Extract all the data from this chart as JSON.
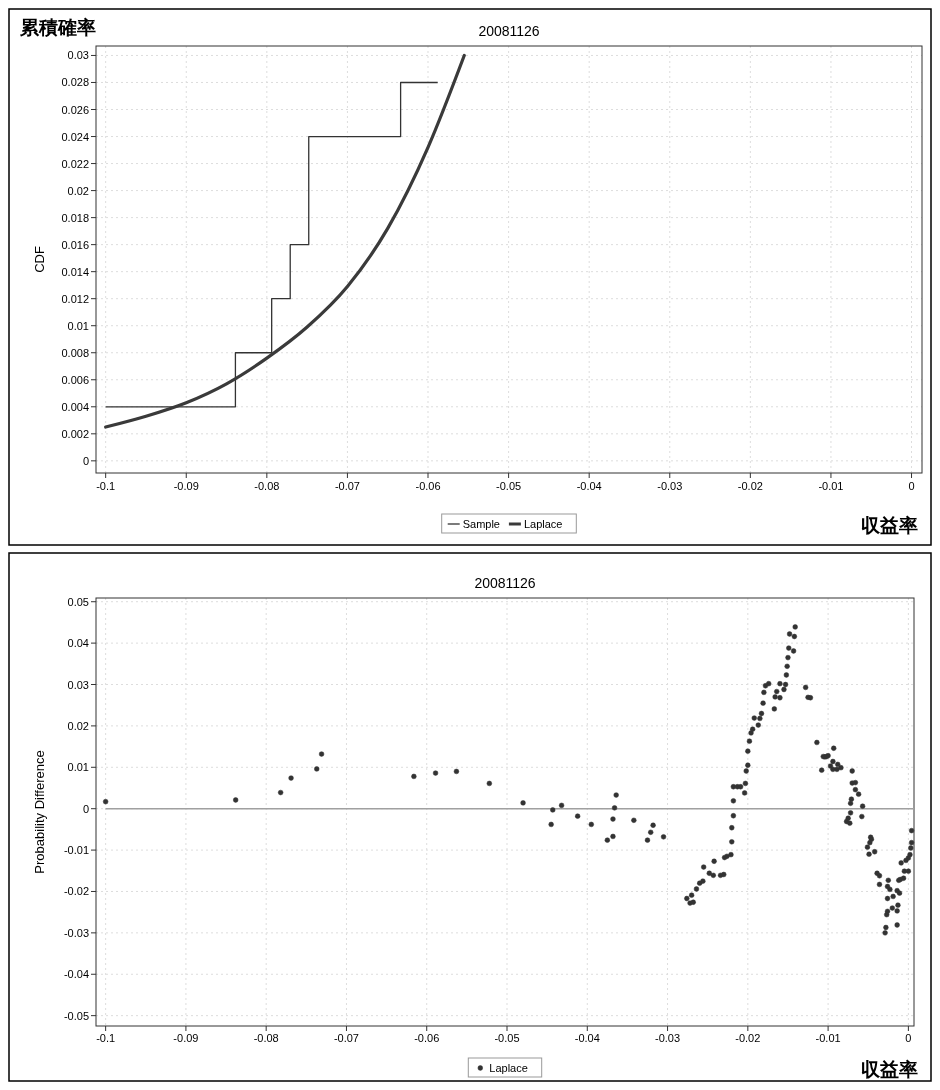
{
  "chart_data": [
    {
      "type": "line",
      "title": "20081126",
      "xlabel": "収益率",
      "ylabel": "CDF",
      "annotations": [
        "累積確率"
      ],
      "xlim": [
        -0.1012,
        0.0013
      ],
      "ylim": [
        -0.0009,
        0.0307
      ],
      "xticks": [
        -0.1,
        -0.09,
        -0.08,
        -0.07,
        -0.06,
        -0.05,
        -0.04,
        -0.03,
        -0.02,
        -0.01,
        0
      ],
      "yticks": [
        0,
        0.002,
        0.004,
        0.006,
        0.008,
        0.01,
        0.012,
        0.014,
        0.016,
        0.018,
        0.02,
        0.022,
        0.024,
        0.026,
        0.028,
        0.03
      ],
      "grid": true,
      "legend": "bottom",
      "series": [
        {
          "name": "Sample",
          "type": "step",
          "color": "#333333",
          "x": [
            -0.1,
            -0.0839,
            -0.0794,
            -0.0771,
            -0.0748,
            -0.0634,
            -0.0588
          ],
          "values": [
            0.004,
            0.008,
            0.012,
            0.016,
            0.024,
            0.028,
            0.028
          ]
        },
        {
          "name": "Laplace",
          "color": "#3a3a3a",
          "x": [
            -0.1,
            -0.095,
            -0.09,
            -0.085,
            -0.08,
            -0.075,
            -0.07,
            -0.065,
            -0.06,
            -0.0555
          ],
          "values": [
            0.0025,
            0.0033,
            0.0043,
            0.0057,
            0.0076,
            0.0099,
            0.0129,
            0.0172,
            0.0232,
            0.03
          ]
        }
      ]
    },
    {
      "type": "scatter",
      "title": "20081126",
      "xlabel": "収益率",
      "ylabel": "Probability Difference",
      "xlim": [
        -0.1012,
        0.0007
      ],
      "ylim": [
        -0.0525,
        0.0509
      ],
      "xticks": [
        -0.1,
        -0.09,
        -0.08,
        -0.07,
        -0.06,
        -0.05,
        -0.04,
        -0.03,
        -0.02,
        -0.01,
        0
      ],
      "yticks": [
        -0.05,
        -0.04,
        -0.03,
        -0.02,
        -0.01,
        0,
        0.01,
        0.02,
        0.03,
        0.04,
        0.05
      ],
      "grid": true,
      "legend": "bottom",
      "marker": "circle",
      "ref_lines": [
        {
          "axis": "y",
          "value": 0,
          "color": "#a0a0a0"
        }
      ],
      "series": [
        {
          "name": "Laplace",
          "color": "#333333",
          "x": [
            -0.1,
            -0.0838,
            -0.0782,
            -0.0769,
            -0.0737,
            -0.0731,
            -0.0616,
            -0.0589,
            -0.0563,
            -0.0522,
            -0.048,
            -0.0445,
            -0.0443,
            -0.0432,
            -0.0412,
            -0.0395,
            -0.0375,
            -0.0368,
            -0.0368,
            -0.0366,
            -0.0364,
            -0.0342,
            -0.0325,
            -0.0321,
            -0.0318,
            -0.0305,
            -0.0276,
            -0.0272,
            -0.0268,
            -0.027,
            -0.0264,
            -0.026,
            -0.0256,
            -0.0255,
            -0.0248,
            -0.0243,
            -0.0242,
            -0.0234,
            -0.023,
            -0.0229,
            -0.0226,
            -0.0221,
            -0.022,
            -0.022,
            -0.0218,
            -0.0218,
            -0.0218,
            -0.0213,
            -0.0209,
            -0.0204,
            -0.0203,
            -0.0202,
            -0.02,
            -0.02,
            -0.0198,
            -0.0196,
            -0.0194,
            -0.0192,
            -0.0187,
            -0.0185,
            -0.0183,
            -0.0181,
            -0.018,
            -0.0178,
            -0.0174,
            -0.0167,
            -0.0166,
            -0.0164,
            -0.016,
            -0.016,
            -0.0155,
            -0.0153,
            -0.0152,
            -0.0151,
            -0.015,
            -0.0149,
            -0.0148,
            -0.0143,
            -0.0142,
            -0.0141,
            -0.0128,
            -0.0125,
            -0.0122,
            -0.0114,
            -0.0108,
            -0.0106,
            -0.0104,
            -0.0102,
            -0.01,
            -0.0097,
            -0.0094,
            -0.0094,
            -0.0093,
            -0.0089,
            -0.0088,
            -0.0084,
            -0.0077,
            -0.0075,
            -0.0073,
            -0.0072,
            -0.0072,
            -0.0071,
            -0.007,
            -0.007,
            -0.0066,
            -0.0066,
            -0.0062,
            -0.0058,
            -0.0057,
            0.0004,
            -0.0047,
            -0.0046,
            -0.0048,
            -0.0051,
            -0.0042,
            -0.0049,
            0.0004,
            0.0003,
            0.0002,
            0,
            -0.0003,
            -0.0009,
            -0.0039,
            -0.0036,
            -0.0036,
            -0.0025,
            -0.0026,
            -0.0023,
            -0.0026,
            -0.0019,
            -0.0014,
            -0.0011,
            -0.0013,
            -0.002,
            -0.0014,
            -0.0026,
            -0.0027,
            -0.0028,
            -0.0029,
            -0.0014,
            -0.0012,
            -0.001,
            -0.0006,
            -0.0005,
            0
          ],
          "values": [
            0.0017,
            0.0021,
            0.0039,
            0.0074,
            0.0096,
            0.0132,
            0.0078,
            0.0086,
            0.009,
            0.0061,
            0.0014,
            -0.0038,
            -0.0003,
            0.0008,
            -0.0018,
            -0.0038,
            -0.0076,
            -0.0025,
            -0.0067,
            0.0002,
            0.0033,
            -0.0028,
            -0.0076,
            -0.0057,
            -0.004,
            -0.0068,
            -0.0217,
            -0.0228,
            -0.0226,
            -0.0209,
            -0.0194,
            -0.018,
            -0.0175,
            -0.0141,
            -0.0156,
            -0.0161,
            -0.0127,
            -0.0161,
            -0.0159,
            -0.0118,
            -0.0115,
            -0.0111,
            -0.008,
            -0.0046,
            -0.0017,
            0.0019,
            0.0053,
            0.0053,
            0.0053,
            0.0038,
            0.0061,
            0.0091,
            0.0105,
            0.0139,
            0.0163,
            0.0183,
            0.0192,
            0.0219,
            0.0202,
            0.0218,
            0.023,
            0.0255,
            0.0281,
            0.0297,
            0.0302,
            0.0241,
            0.027,
            0.0283,
            0.0268,
            0.0302,
            0.0288,
            0.03,
            0.0323,
            0.0344,
            0.0365,
            0.0388,
            0.0422,
            0.0381,
            0.0416,
            0.0439,
            0.0293,
            0.0269,
            0.0268,
            0.016,
            0.0093,
            0.0126,
            0.0125,
            0.0126,
            0.0128,
            0.0103,
            0.0114,
            0.0095,
            0.0146,
            0.0095,
            0.0107,
            0.0099,
            -0.0031,
            -0.0023,
            -0.0035,
            -0.001,
            0.0013,
            0.0023,
            0.0062,
            0.0091,
            0.0063,
            0.0046,
            0.0035,
            -0.0019,
            0.0006,
            -0.0053,
            -0.0069,
            -0.0074,
            -0.0082,
            -0.0093,
            -0.0104,
            -0.011,
            -0.0082,
            -0.0095,
            -0.0111,
            -0.0119,
            -0.0125,
            -0.0131,
            -0.0156,
            -0.0162,
            -0.0183,
            -0.0173,
            -0.0188,
            -0.0195,
            -0.0217,
            -0.0212,
            -0.0198,
            -0.0204,
            -0.0233,
            -0.024,
            -0.0247,
            -0.0248,
            -0.0256,
            -0.0287,
            -0.03,
            -0.0281,
            -0.0173,
            -0.0171,
            -0.0168,
            -0.0151,
            -0.0151
          ]
        }
      ]
    }
  ]
}
